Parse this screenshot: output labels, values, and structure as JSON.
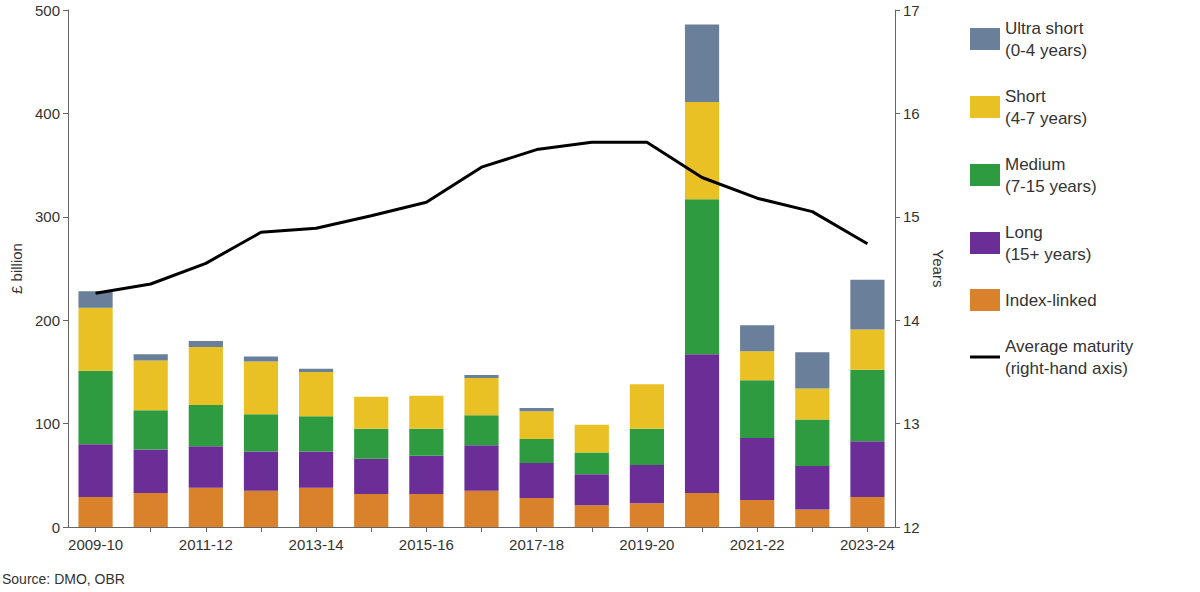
{
  "chart_data": {
    "type": "bar",
    "stacked": true,
    "grid": false,
    "legend": "right",
    "ylabel": "£ billion",
    "y2label": "Years",
    "source": "Source: DMO, OBR",
    "categories": [
      "2009-10",
      null,
      "2011-12",
      null,
      "2013-14",
      null,
      "2015-16",
      null,
      "2017-18",
      null,
      "2019-20",
      null,
      "2021-22",
      null,
      "2023-24"
    ],
    "ylim": [
      0,
      500
    ],
    "yticks": [
      0,
      100,
      200,
      300,
      400,
      500
    ],
    "y2lim": [
      12,
      17
    ],
    "y2ticks": [
      12,
      13,
      14,
      15,
      16,
      17
    ],
    "series": [
      {
        "name": "Index-linked",
        "type": "bar",
        "color": "#d9822b",
        "values": [
          29,
          33,
          38,
          35,
          38,
          32,
          32,
          35,
          28,
          21,
          23,
          33,
          26,
          17,
          29
        ]
      },
      {
        "name": "Long\n(15+ years)",
        "type": "bar",
        "color": "#6b2e96",
        "values": [
          51,
          42,
          40,
          38,
          35,
          34,
          37,
          44,
          34,
          30,
          37,
          134,
          60,
          42,
          54
        ]
      },
      {
        "name": "Medium\n(7-15 years)",
        "type": "bar",
        "color": "#2e9b40",
        "values": [
          71,
          38,
          40,
          36,
          34,
          29,
          26,
          29,
          23,
          21,
          35,
          150,
          56,
          45,
          69
        ]
      },
      {
        "name": "Short\n(4-7 years)",
        "type": "bar",
        "color": "#e9c125",
        "values": [
          61,
          48,
          56,
          51,
          43,
          31,
          32,
          36,
          27,
          27,
          43,
          94,
          28,
          30,
          39
        ]
      },
      {
        "name": "Ultra short\n(0-4 years)",
        "type": "bar",
        "color": "#6a7f99",
        "values": [
          16,
          6,
          6,
          5,
          3,
          0,
          0,
          3,
          3,
          0,
          0,
          75,
          25,
          35,
          48
        ]
      },
      {
        "name": "Average maturity\n(right-hand axis)",
        "type": "line",
        "axis": "y2",
        "color": "#000000",
        "line_style": "solid",
        "values": [
          14.26,
          14.35,
          14.55,
          14.85,
          14.89,
          15.01,
          15.14,
          15.48,
          15.65,
          15.72,
          15.72,
          15.38,
          15.18,
          15.05,
          14.74
        ]
      }
    ]
  }
}
